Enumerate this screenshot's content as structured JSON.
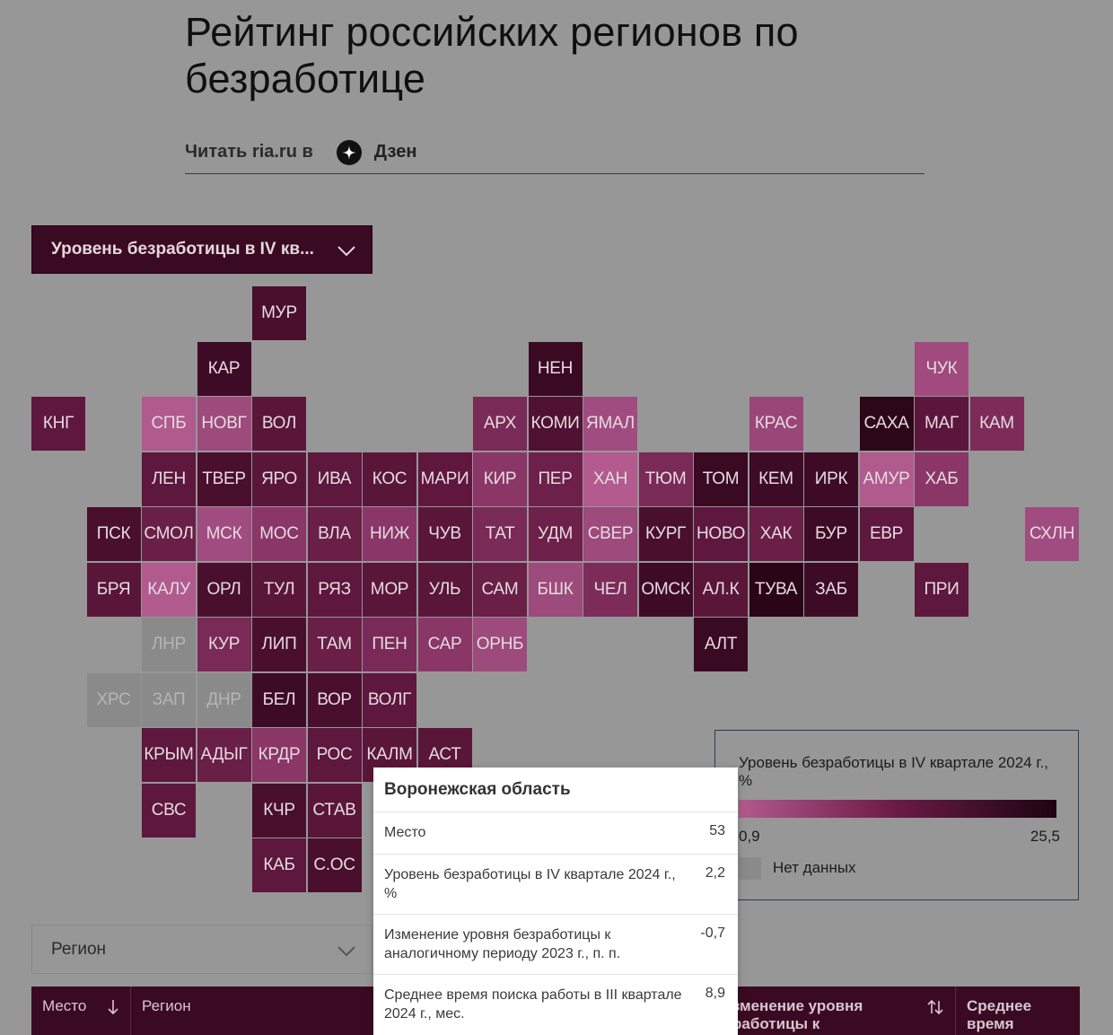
{
  "header": {
    "title": "Рейтинг российских регионов по безработице",
    "read_text": "Читать ria.ru в",
    "zen_label": "Дзен"
  },
  "metric_select": {
    "value": "Уровень безработицы в IV кв..."
  },
  "map": {
    "tiles": [
      {
        "label": "МУР",
        "col": 4,
        "row": 0,
        "color": "#4a0f2d"
      },
      {
        "label": "КАР",
        "col": 3,
        "row": 1,
        "color": "#3e0b26"
      },
      {
        "label": "НЕН",
        "col": 9,
        "row": 1,
        "color": "#3a0a22"
      },
      {
        "label": "ЧУК",
        "col": 16,
        "row": 1,
        "color": "#a04a7e"
      },
      {
        "label": "КНГ",
        "col": 0,
        "row": 2,
        "color": "#5f173e"
      },
      {
        "label": "СПБ",
        "col": 2,
        "row": 2,
        "color": "#b05a8e"
      },
      {
        "label": "НОВГ",
        "col": 3,
        "row": 2,
        "color": "#9d4a7c"
      },
      {
        "label": "ВОЛ",
        "col": 4,
        "row": 2,
        "color": "#5a1639"
      },
      {
        "label": "АРХ",
        "col": 8,
        "row": 2,
        "color": "#7a2a57"
      },
      {
        "label": "КОМИ",
        "col": 9,
        "row": 2,
        "color": "#4f1232"
      },
      {
        "label": "ЯМАЛ",
        "col": 10,
        "row": 2,
        "color": "#a04c80"
      },
      {
        "label": "КРАС",
        "col": 13,
        "row": 2,
        "color": "#9a4679"
      },
      {
        "label": "САХА",
        "col": 15,
        "row": 2,
        "color": "#2c0619"
      },
      {
        "label": "МАГ",
        "col": 16,
        "row": 2,
        "color": "#5c163b"
      },
      {
        "label": "КАМ",
        "col": 17,
        "row": 2,
        "color": "#7d2c5a"
      },
      {
        "label": "ЛЕН",
        "col": 2,
        "row": 3,
        "color": "#5e173d"
      },
      {
        "label": "ТВЕР",
        "col": 3,
        "row": 3,
        "color": "#4a0f2d"
      },
      {
        "label": "ЯРО",
        "col": 4,
        "row": 3,
        "color": "#5a1639"
      },
      {
        "label": "ИВА",
        "col": 5,
        "row": 3,
        "color": "#5e173d"
      },
      {
        "label": "КОС",
        "col": 6,
        "row": 3,
        "color": "#5a1639"
      },
      {
        "label": "МАРИ",
        "col": 7,
        "row": 3,
        "color": "#5f173e"
      },
      {
        "label": "КИР",
        "col": 8,
        "row": 3,
        "color": "#8a3667"
      },
      {
        "label": "ПЕР",
        "col": 9,
        "row": 3,
        "color": "#6d2049"
      },
      {
        "label": "ХАН",
        "col": 10,
        "row": 3,
        "color": "#b35b8f"
      },
      {
        "label": "ТЮМ",
        "col": 11,
        "row": 3,
        "color": "#7a2a57"
      },
      {
        "label": "ТОМ",
        "col": 12,
        "row": 3,
        "color": "#3a0a22"
      },
      {
        "label": "КЕМ",
        "col": 13,
        "row": 3,
        "color": "#3e0b26"
      },
      {
        "label": "ИРК",
        "col": 14,
        "row": 3,
        "color": "#3e0b26"
      },
      {
        "label": "АМУР",
        "col": 15,
        "row": 3,
        "color": "#b05a8e"
      },
      {
        "label": "ХАБ",
        "col": 16,
        "row": 3,
        "color": "#8a3667"
      },
      {
        "label": "ПСК",
        "col": 1,
        "row": 4,
        "color": "#4a0f2d"
      },
      {
        "label": "СМОЛ",
        "col": 2,
        "row": 4,
        "color": "#6a1f47"
      },
      {
        "label": "МСК",
        "col": 3,
        "row": 4,
        "color": "#a04c80"
      },
      {
        "label": "МОС",
        "col": 4,
        "row": 4,
        "color": "#8a3667"
      },
      {
        "label": "ВЛА",
        "col": 5,
        "row": 4,
        "color": "#6a1f47"
      },
      {
        "label": "НИЖ",
        "col": 6,
        "row": 4,
        "color": "#8a3667"
      },
      {
        "label": "ЧУВ",
        "col": 7,
        "row": 4,
        "color": "#5a1639"
      },
      {
        "label": "ТАТ",
        "col": 8,
        "row": 4,
        "color": "#7a2a57"
      },
      {
        "label": "УДМ",
        "col": 9,
        "row": 4,
        "color": "#6d2049"
      },
      {
        "label": "СВЕР",
        "col": 10,
        "row": 4,
        "color": "#9d4a7c"
      },
      {
        "label": "КУРГ",
        "col": 11,
        "row": 4,
        "color": "#4a0f2d"
      },
      {
        "label": "НОВО",
        "col": 12,
        "row": 4,
        "color": "#5e173d"
      },
      {
        "label": "ХАК",
        "col": 13,
        "row": 4,
        "color": "#6a1f47"
      },
      {
        "label": "БУР",
        "col": 14,
        "row": 4,
        "color": "#3e0b26"
      },
      {
        "label": "ЕВР",
        "col": 15,
        "row": 4,
        "color": "#5e173d"
      },
      {
        "label": "СХЛН",
        "col": 18,
        "row": 4,
        "color": "#a04c80"
      },
      {
        "label": "БРЯ",
        "col": 1,
        "row": 5,
        "color": "#5a1639"
      },
      {
        "label": "КАЛУ",
        "col": 2,
        "row": 5,
        "color": "#b05a8e"
      },
      {
        "label": "ОРЛ",
        "col": 3,
        "row": 5,
        "color": "#4a0f2d"
      },
      {
        "label": "ТУЛ",
        "col": 4,
        "row": 5,
        "color": "#5a1639"
      },
      {
        "label": "РЯЗ",
        "col": 5,
        "row": 5,
        "color": "#5e173d"
      },
      {
        "label": "МОР",
        "col": 6,
        "row": 5,
        "color": "#5a1639"
      },
      {
        "label": "УЛЬ",
        "col": 7,
        "row": 5,
        "color": "#5a1639"
      },
      {
        "label": "САМ",
        "col": 8,
        "row": 5,
        "color": "#6a1f47"
      },
      {
        "label": "БШК",
        "col": 9,
        "row": 5,
        "color": "#9d4a7c"
      },
      {
        "label": "ЧЕЛ",
        "col": 10,
        "row": 5,
        "color": "#7d2c5a"
      },
      {
        "label": "ОМСК",
        "col": 11,
        "row": 5,
        "color": "#3e0b26"
      },
      {
        "label": "АЛ.К",
        "col": 12,
        "row": 5,
        "color": "#5a1639"
      },
      {
        "label": "ТУВА",
        "col": 13,
        "row": 5,
        "color": "#2a0518"
      },
      {
        "label": "ЗАБ",
        "col": 14,
        "row": 5,
        "color": "#3e0b26"
      },
      {
        "label": "ПРИ",
        "col": 16,
        "row": 5,
        "color": "#5e173d"
      },
      {
        "label": "ЛНР",
        "col": 2,
        "row": 6,
        "color": "#8a8a8a",
        "nodata": true
      },
      {
        "label": "КУР",
        "col": 3,
        "row": 6,
        "color": "#7a2a57"
      },
      {
        "label": "ЛИП",
        "col": 4,
        "row": 6,
        "color": "#4a0f2d"
      },
      {
        "label": "ТАМ",
        "col": 5,
        "row": 6,
        "color": "#6a1f47"
      },
      {
        "label": "ПЕН",
        "col": 6,
        "row": 6,
        "color": "#7a2a57"
      },
      {
        "label": "САР",
        "col": 7,
        "row": 6,
        "color": "#8a3667"
      },
      {
        "label": "ОРНБ",
        "col": 8,
        "row": 6,
        "color": "#9d4a7c"
      },
      {
        "label": "АЛТ",
        "col": 12,
        "row": 6,
        "color": "#3a0a22"
      },
      {
        "label": "ХРС",
        "col": 1,
        "row": 7,
        "color": "#8a8a8a",
        "nodata": true
      },
      {
        "label": "ЗАП",
        "col": 2,
        "row": 7,
        "color": "#8a8a8a",
        "nodata": true
      },
      {
        "label": "ДНР",
        "col": 3,
        "row": 7,
        "color": "#8a8a8a",
        "nodata": true
      },
      {
        "label": "БЕЛ",
        "col": 4,
        "row": 7,
        "color": "#3e0b26"
      },
      {
        "label": "ВОР",
        "col": 5,
        "row": 7,
        "color": "#4a0f2d"
      },
      {
        "label": "ВОЛГ",
        "col": 6,
        "row": 7,
        "color": "#5e173d"
      },
      {
        "label": "КРЫМ",
        "col": 2,
        "row": 8,
        "color": "#5e173d"
      },
      {
        "label": "АДЫГ",
        "col": 3,
        "row": 8,
        "color": "#6a1f47"
      },
      {
        "label": "КРДР",
        "col": 4,
        "row": 8,
        "color": "#8a3667"
      },
      {
        "label": "РОС",
        "col": 5,
        "row": 8,
        "color": "#5e173d"
      },
      {
        "label": "КАЛМ",
        "col": 6,
        "row": 8,
        "color": "#5a1639"
      },
      {
        "label": "АСТ",
        "col": 7,
        "row": 8,
        "color": "#5a1639"
      },
      {
        "label": "СВС",
        "col": 2,
        "row": 9,
        "color": "#5e173d"
      },
      {
        "label": "КЧР",
        "col": 4,
        "row": 9,
        "color": "#4a0f2d"
      },
      {
        "label": "СТАВ",
        "col": 5,
        "row": 9,
        "color": "#5a1639"
      },
      {
        "label": "КАБ",
        "col": 4,
        "row": 10,
        "color": "#5e173d"
      },
      {
        "label": "С.ОС",
        "col": 5,
        "row": 10,
        "color": "#4a0f2d"
      }
    ]
  },
  "legend": {
    "title": "Уровень безработицы в IV квартале 2024 г., %",
    "min": "0,9",
    "max": "25,5",
    "no_data": "Нет данных",
    "gradient": [
      "#b25a8d",
      "#1e0412"
    ],
    "no_data_color": "#8a8a8a"
  },
  "region_select": {
    "value": "Регион"
  },
  "table_header": {
    "col_place": "Место",
    "col_region": "Регион",
    "col_change": "зменение уровня\nработицы к",
    "col_search": "Среднее время\nпоиска работы"
  },
  "tooltip": {
    "title": "Воронежская область",
    "rows": [
      {
        "label": "Место",
        "value": "53"
      },
      {
        "label": "Уровень безработицы в IV квартале 2024 г., %",
        "value": "2,2"
      },
      {
        "label": "Изменение уровня безработицы к аналогичному периоду 2023 г., п. п.",
        "value": "-0,7"
      },
      {
        "label": "Среднее время поиска работы в III квартале 2024 г.,  мес.",
        "value": "8,9"
      }
    ]
  }
}
